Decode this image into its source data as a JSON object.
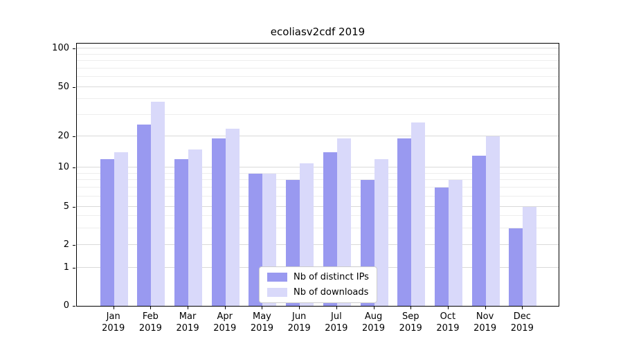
{
  "chart_data": {
    "type": "bar",
    "title": "ecoliasv2cdf 2019",
    "year": "2019",
    "categories": [
      "Jan",
      "Feb",
      "Mar",
      "Apr",
      "May",
      "Jun",
      "Jul",
      "Aug",
      "Sep",
      "Oct",
      "Nov",
      "Dec"
    ],
    "series": [
      {
        "name": "Nb of distinct IPs",
        "color": "#9999f0",
        "values": [
          12,
          25,
          12,
          19,
          9,
          8,
          14,
          8,
          19,
          7,
          13,
          3
        ]
      },
      {
        "name": "Nb of downloads",
        "color": "#d9d9fa",
        "values": [
          14,
          38,
          15,
          23,
          9,
          11,
          19,
          12,
          26,
          8,
          20,
          5
        ]
      }
    ],
    "yscale": "symlog",
    "y_ticks": [
      0,
      1,
      2,
      5,
      10,
      20,
      50,
      100
    ],
    "y_minor_ticks": [
      3,
      4,
      6,
      7,
      8,
      9,
      30,
      40,
      60,
      70,
      80,
      90
    ],
    "ylim": [
      0,
      100
    ],
    "xlabel": "",
    "ylabel": "",
    "grid": true,
    "legend_position": "lower center"
  }
}
